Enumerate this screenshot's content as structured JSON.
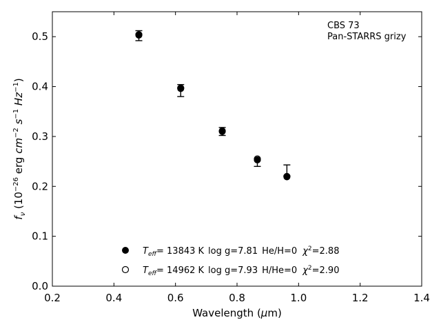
{
  "chart_data": {
    "type": "scatter",
    "annotation": [
      "CBS 73",
      "Pan-STARRS grizy"
    ],
    "xlabel": "Wavelength (μm)",
    "ylabel": "fν (10⁻²⁶ erg cm⁻² s⁻¹ Hz⁻¹)",
    "xlim": [
      0.2,
      1.4
    ],
    "ylim": [
      0.0,
      0.55
    ],
    "xticks": [
      "0.2",
      "0.4",
      "0.6",
      "0.8",
      "1.0",
      "1.2",
      "1.4"
    ],
    "yticks": [
      "0.0",
      "0.1",
      "0.2",
      "0.3",
      "0.4",
      "0.5"
    ],
    "grid": false,
    "legend_position": "bottom-center",
    "observed": {
      "x": [
        0.481,
        0.617,
        0.752,
        0.866,
        0.962
      ],
      "y": [
        0.502,
        0.392,
        0.31,
        0.246,
        0.232
      ],
      "yerr": [
        0.01,
        0.012,
        0.008,
        0.006,
        0.011
      ]
    },
    "series": [
      {
        "name": "T_eff= 13843 K  log g=7.81  He/H=0  χ²=2.88",
        "marker": "filled-circle",
        "x": [
          0.481,
          0.617,
          0.752,
          0.866,
          0.962
        ],
        "y": [
          0.503,
          0.396,
          0.31,
          0.253,
          0.219
        ]
      },
      {
        "name": "T_eff= 14962 K  log g=7.93  H/He=0  χ²=2.90",
        "marker": "open-circle",
        "x": [
          0.481,
          0.617,
          0.752,
          0.866,
          0.962
        ],
        "y": [
          0.504,
          0.397,
          0.311,
          0.255,
          0.22
        ]
      }
    ],
    "legend": [
      {
        "teff": "= 13843 K",
        "logg": "log g=7.81",
        "comp": "He/H=0",
        "chi": "=2.88"
      },
      {
        "teff": "= 14962 K",
        "logg": "log g=7.93",
        "comp": "H/He=0",
        "chi": "=2.90"
      }
    ]
  }
}
